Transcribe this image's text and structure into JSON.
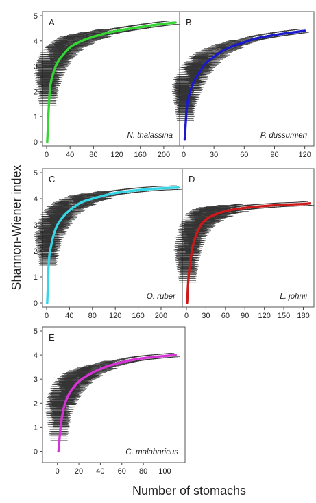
{
  "figure": {
    "ylabel": "Shannon-Wiener index",
    "xlabel": "Number of stomachs"
  },
  "chart_data": [
    {
      "type": "line",
      "panel": "A",
      "species": "N. thalassina",
      "color": "#33d633",
      "xlim": [
        0,
        220
      ],
      "ylim": [
        0,
        5
      ],
      "xticks": [
        0,
        40,
        80,
        120,
        160,
        200
      ],
      "yticks": [
        0,
        1,
        2,
        3,
        4,
        5
      ],
      "x": [
        1,
        5,
        10,
        20,
        30,
        40,
        60,
        80,
        100,
        120,
        140,
        160,
        180,
        200,
        220
      ],
      "y": [
        0.0,
        1.9,
        2.6,
        3.2,
        3.5,
        3.75,
        4.0,
        4.17,
        4.3,
        4.4,
        4.48,
        4.55,
        4.62,
        4.68,
        4.73
      ]
    },
    {
      "type": "line",
      "panel": "B",
      "species": "P. dussumieri",
      "color": "#1a1acc",
      "xlim": [
        0,
        125
      ],
      "ylim": [
        -0.7,
        5
      ],
      "xticks": [
        0,
        30,
        60,
        90,
        120
      ],
      "yticks": [],
      "x": [
        1,
        3,
        6,
        10,
        15,
        20,
        30,
        40,
        50,
        60,
        70,
        80,
        90,
        100,
        110,
        120
      ],
      "y": [
        -0.6,
        0.8,
        1.5,
        2.0,
        2.4,
        2.75,
        3.15,
        3.45,
        3.65,
        3.8,
        3.95,
        4.05,
        4.13,
        4.2,
        4.26,
        4.32
      ]
    },
    {
      "type": "line",
      "panel": "C",
      "species": "O. ruber",
      "color": "#33d6e6",
      "xlim": [
        0,
        230
      ],
      "ylim": [
        0,
        5
      ],
      "xticks": [
        0,
        40,
        80,
        120,
        160,
        200
      ],
      "yticks": [
        0,
        1,
        2,
        3,
        4,
        5
      ],
      "x": [
        1,
        4,
        8,
        15,
        25,
        40,
        60,
        80,
        100,
        120,
        140,
        160,
        180,
        200,
        230
      ],
      "y": [
        0.0,
        1.6,
        2.2,
        2.8,
        3.2,
        3.55,
        3.85,
        4.0,
        4.12,
        4.22,
        4.28,
        4.33,
        4.37,
        4.4,
        4.43
      ]
    },
    {
      "type": "line",
      "panel": "D",
      "species": "L. johnii",
      "color": "#cc1a1a",
      "xlim": [
        0,
        190
      ],
      "ylim": [
        0,
        5
      ],
      "xticks": [
        0,
        30,
        60,
        90,
        120,
        150,
        180
      ],
      "yticks": [],
      "x": [
        1,
        3,
        6,
        10,
        15,
        20,
        30,
        45,
        60,
        90,
        120,
        150,
        180,
        190
      ],
      "y": [
        0.0,
        0.9,
        1.6,
        2.2,
        2.6,
        2.9,
        3.2,
        3.4,
        3.52,
        3.65,
        3.72,
        3.77,
        3.8,
        3.82
      ]
    },
    {
      "type": "line",
      "panel": "E",
      "species": "C. malabaricus",
      "color": "#d633d6",
      "xlim": [
        -10,
        115
      ],
      "ylim": [
        -0.3,
        5
      ],
      "xticks": [
        0,
        20,
        40,
        60,
        80,
        100
      ],
      "yticks": [
        0,
        1,
        2,
        3,
        4,
        5
      ],
      "x": [
        1,
        3,
        6,
        10,
        15,
        20,
        30,
        40,
        50,
        60,
        70,
        80,
        90,
        100,
        110
      ],
      "y": [
        0.0,
        1.0,
        1.8,
        2.3,
        2.65,
        2.9,
        3.2,
        3.42,
        3.58,
        3.7,
        3.8,
        3.87,
        3.92,
        3.96,
        4.0
      ]
    }
  ]
}
